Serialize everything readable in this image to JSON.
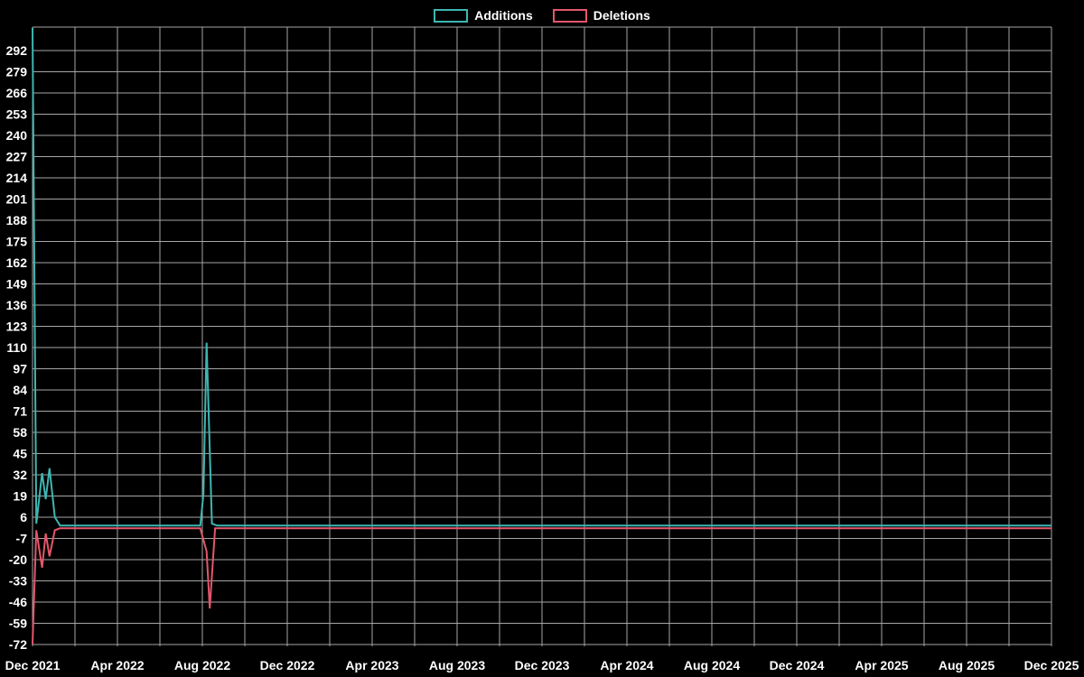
{
  "chart_data": {
    "type": "line",
    "title": "",
    "background_color": "#000000",
    "grid_color": "#a6a6a6",
    "text_color": "#ffffff",
    "legend_position": "top-center",
    "x_tick_labels": [
      "Dec 2021",
      "Apr 2022",
      "Aug 2022",
      "Dec 2022",
      "Apr 2023",
      "Aug 2023",
      "Dec 2023",
      "Apr 2024",
      "Aug 2024",
      "Dec 2024",
      "Apr 2025",
      "Aug 2025",
      "Dec 2025"
    ],
    "x_tick_months": [
      0,
      4,
      8,
      12,
      16,
      20,
      24,
      28,
      32,
      36,
      40,
      44,
      48
    ],
    "x_grid_step_months": 2,
    "x_range_months": [
      0,
      48
    ],
    "y_ticks": [
      292,
      279,
      266,
      253,
      240,
      227,
      214,
      201,
      188,
      175,
      162,
      149,
      136,
      123,
      110,
      97,
      84,
      71,
      58,
      45,
      32,
      19,
      6,
      -7,
      -20,
      -33,
      -46,
      -59,
      -72
    ],
    "ylim": [
      -73.2,
      306.5
    ],
    "grid": true,
    "series": [
      {
        "name": "Additions",
        "color": "#3fb6b2",
        "points": [
          [
            0,
            306
          ],
          [
            0.18,
            2
          ],
          [
            0.45,
            33
          ],
          [
            0.62,
            17
          ],
          [
            0.8,
            36
          ],
          [
            1.05,
            6
          ],
          [
            1.3,
            0.8
          ],
          [
            7.9,
            0.8
          ],
          [
            8.05,
            20
          ],
          [
            8.2,
            113
          ],
          [
            8.45,
            2
          ],
          [
            8.7,
            0.8
          ],
          [
            48,
            0.8
          ]
        ]
      },
      {
        "name": "Deletions",
        "color": "#e4566b",
        "points": [
          [
            0,
            -72
          ],
          [
            0.18,
            -2
          ],
          [
            0.45,
            -25
          ],
          [
            0.62,
            -4
          ],
          [
            0.8,
            -18
          ],
          [
            1.05,
            -2
          ],
          [
            1.3,
            -0.8
          ],
          [
            7.9,
            -0.8
          ],
          [
            8.2,
            -15
          ],
          [
            8.35,
            -50
          ],
          [
            8.6,
            -0.8
          ],
          [
            48,
            -0.8
          ]
        ]
      }
    ]
  }
}
